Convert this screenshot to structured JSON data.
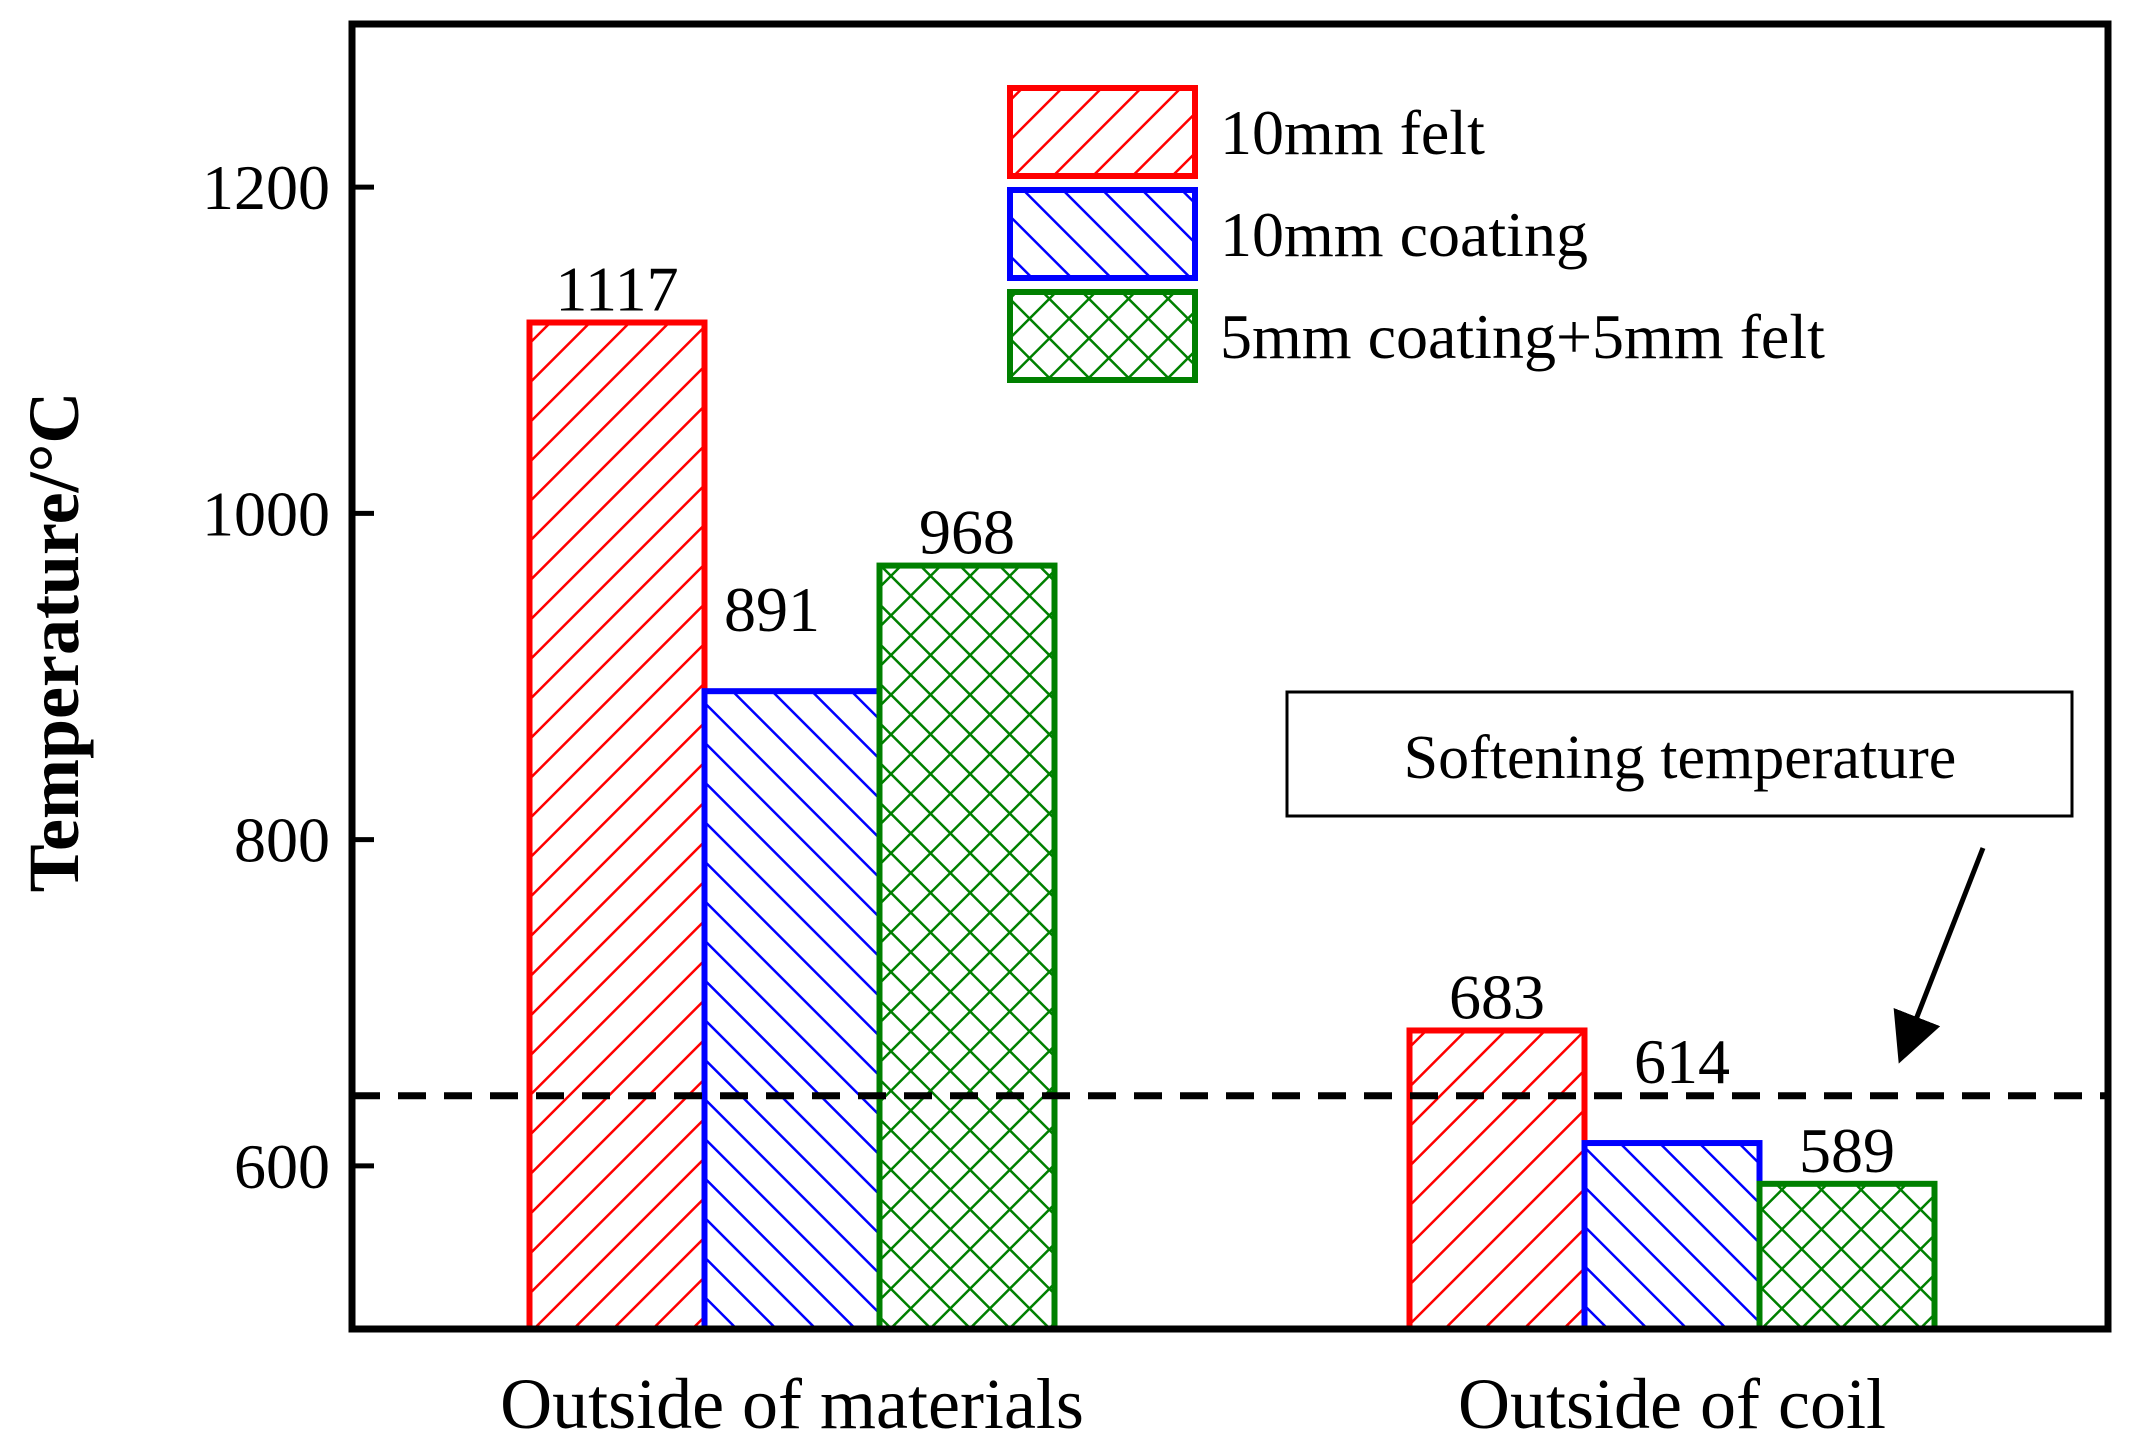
{
  "chart_data": {
    "type": "bar",
    "title": "",
    "xlabel": "",
    "ylabel": "Temperature/°C",
    "ylim": [
      500,
      1300
    ],
    "yticks": [
      600,
      800,
      1000,
      1200
    ],
    "categories": [
      "Outside of materials",
      "Outside of coil"
    ],
    "series": [
      {
        "name": "10mm felt",
        "values": [
          1117,
          683
        ],
        "color": "#ff0000",
        "pattern": "diagonal-up"
      },
      {
        "name": "10mm coating",
        "values": [
          891,
          614
        ],
        "color": "#0000ff",
        "pattern": "diagonal-down"
      },
      {
        "name": "5mm coating+5mm felt",
        "values": [
          968,
          589
        ],
        "color": "#008000",
        "pattern": "crosshatch"
      }
    ],
    "reference_line": {
      "value": 643,
      "label": "Softening temperature",
      "style": "dashed",
      "color": "#000000"
    },
    "legend_position": "top-right"
  }
}
